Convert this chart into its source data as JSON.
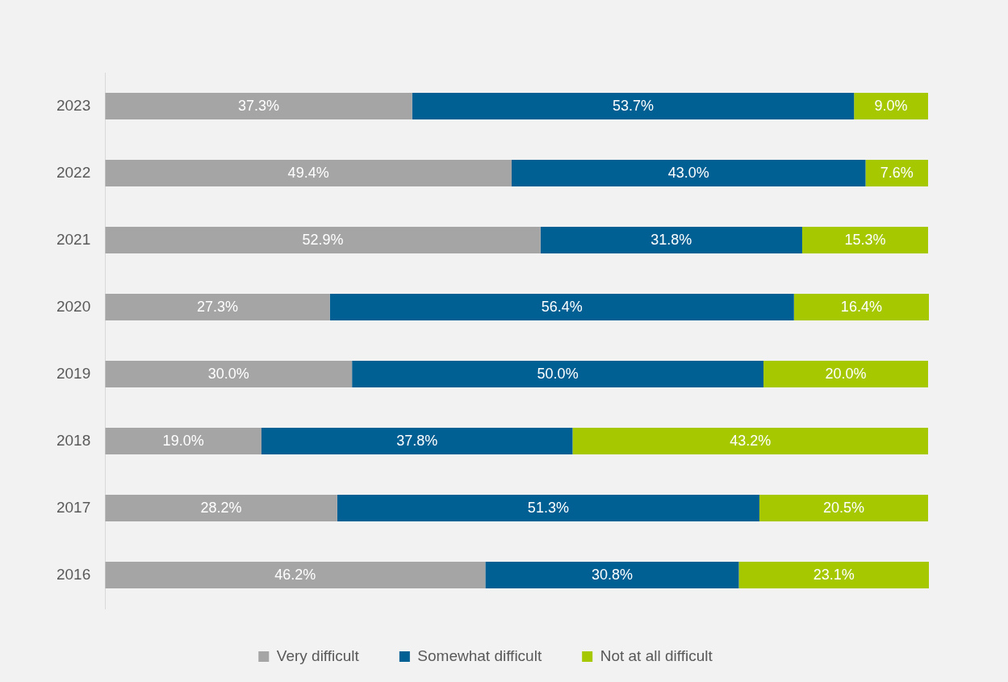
{
  "chart_data": {
    "type": "bar",
    "orientation": "horizontal",
    "stacked": true,
    "categories": [
      "2023",
      "2022",
      "2021",
      "2020",
      "2019",
      "2018",
      "2017",
      "2016"
    ],
    "series": [
      {
        "name": "Very difficult",
        "color": "#a5a5a5",
        "values": [
          37.3,
          49.4,
          52.9,
          27.3,
          30.0,
          19.0,
          28.2,
          46.2
        ],
        "value_labels": [
          "37.3%",
          "49.4%",
          "52.9%",
          "27.3%",
          "30.0%",
          "19.0%",
          "28.2%",
          "46.2%"
        ]
      },
      {
        "name": "Somewhat difficult",
        "color": "#005f93",
        "values": [
          53.7,
          43.0,
          31.8,
          56.4,
          50.0,
          37.8,
          51.3,
          30.8
        ],
        "value_labels": [
          "53.7%",
          "43.0%",
          "31.8%",
          "56.4%",
          "50.0%",
          "37.8%",
          "51.3%",
          "30.8%"
        ]
      },
      {
        "name": "Not at all difficult",
        "color": "#a5c800",
        "values": [
          9.0,
          7.6,
          15.3,
          16.4,
          20.0,
          43.2,
          20.5,
          23.1
        ],
        "value_labels": [
          "9.0%",
          "7.6%",
          "15.3%",
          "16.4%",
          "20.0%",
          "43.2%",
          "20.5%",
          "23.1%"
        ]
      }
    ],
    "xlim": [
      0,
      100.1
    ],
    "tick_labels": "y",
    "grid": false,
    "legend": "bottom"
  }
}
